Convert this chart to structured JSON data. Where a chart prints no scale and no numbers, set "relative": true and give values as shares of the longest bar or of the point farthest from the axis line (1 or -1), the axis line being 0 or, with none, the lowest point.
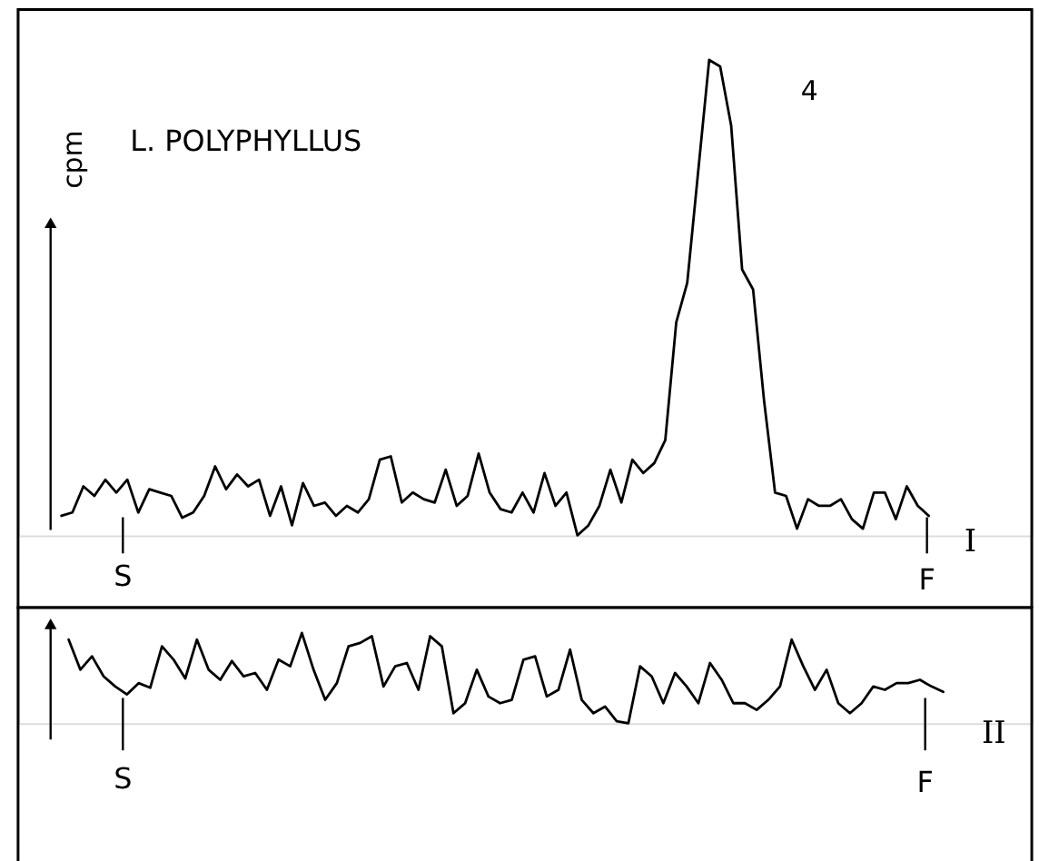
{
  "chart_data": [
    {
      "type": "line",
      "relative": true,
      "title": "L. POLYPHYLLUS",
      "ylabel": "cpm",
      "categories": [
        null,
        null,
        null,
        null,
        null,
        null,
        null,
        null,
        null,
        null,
        null,
        null,
        null,
        null,
        null,
        null,
        null,
        null,
        null,
        null,
        null,
        null,
        null,
        null,
        null,
        null,
        null,
        null,
        null,
        null,
        null,
        null,
        null,
        null,
        null,
        null,
        null,
        null,
        null,
        null,
        null,
        null,
        null,
        null,
        null,
        null,
        null,
        null,
        null,
        null,
        null,
        null,
        null,
        null,
        null,
        null,
        null,
        null,
        null,
        null,
        null,
        null,
        null,
        null,
        null,
        null,
        null,
        null,
        null,
        null,
        null,
        null,
        null,
        null,
        null,
        null,
        null,
        null,
        null,
        null
      ],
      "series": [
        {
          "color": "#000000",
          "values": [
            0.041,
            0.048,
            0.103,
            0.083,
            0.117,
            0.09,
            0.117,
            0.048,
            0.097,
            0.09,
            0.083,
            0.037,
            0.048,
            0.083,
            0.145,
            0.097,
            0.128,
            0.103,
            0.117,
            0.041,
            0.103,
            0.021,
            0.11,
            0.062,
            0.069,
            0.041,
            0.062,
            0.048,
            0.076,
            0.159,
            0.166,
            0.069,
            0.09,
            0.076,
            0.069,
            0.138,
            0.062,
            0.083,
            0.172,
            0.09,
            0.055,
            0.048,
            0.09,
            0.048,
            0.131,
            0.062,
            0.09,
            0,
            0.021,
            0.062,
            0.138,
            0.069,
            0.159,
            0.131,
            0.152,
            0.2,
            0.448,
            0.531,
            0.766,
            1,
            0.986,
            0.862,
            0.559,
            0.517,
            0.283,
            0.09,
            0.083,
            0.014,
            0.076,
            0.062,
            0.062,
            0.076,
            0.034,
            0.014,
            0.09,
            0.09,
            0.034,
            0.103,
            0.062,
            0.041
          ]
        }
      ],
      "annotations": [
        "4",
        "S",
        "F",
        "I"
      ]
    },
    {
      "type": "line",
      "relative": true,
      "categories": [
        null,
        null,
        null,
        null,
        null,
        null,
        null,
        null,
        null,
        null,
        null,
        null,
        null,
        null,
        null,
        null,
        null,
        null,
        null,
        null,
        null,
        null,
        null,
        null,
        null,
        null,
        null,
        null,
        null,
        null,
        null,
        null,
        null,
        null,
        null,
        null,
        null,
        null,
        null,
        null,
        null,
        null,
        null,
        null,
        null,
        null,
        null,
        null,
        null,
        null,
        null,
        null,
        null,
        null,
        null,
        null,
        null,
        null,
        null,
        null,
        null,
        null,
        null,
        null,
        null,
        null,
        null,
        null,
        null,
        null,
        null,
        null,
        null,
        null,
        null,
        null
      ],
      "series": [
        {
          "color": "#000000",
          "values": [
            0.926,
            0.593,
            0.741,
            0.519,
            0.407,
            0.319,
            0.444,
            0.393,
            0.852,
            0.704,
            0.496,
            0.926,
            0.593,
            0.481,
            0.689,
            0.519,
            0.556,
            0.37,
            0.704,
            0.63,
            1,
            0.593,
            0.259,
            0.444,
            0.852,
            0.889,
            0.963,
            0.407,
            0.63,
            0.667,
            0.37,
            0.963,
            0.852,
            0.111,
            0.222,
            0.593,
            0.296,
            0.222,
            0.259,
            0.704,
            0.741,
            0.296,
            0.37,
            0.815,
            0.259,
            0.111,
            0.185,
            0.022,
            0,
            0.63,
            0.519,
            0.222,
            0.556,
            0.407,
            0.222,
            0.667,
            0.481,
            0.222,
            0.222,
            0.148,
            0.259,
            0.407,
            0.926,
            0.63,
            0.37,
            0.593,
            0.222,
            0.111,
            0.222,
            0.407,
            0.37,
            0.444,
            0.444,
            0.481,
            0.407,
            0.348
          ]
        }
      ],
      "annotations": [
        "S",
        "F",
        "II"
      ]
    }
  ]
}
